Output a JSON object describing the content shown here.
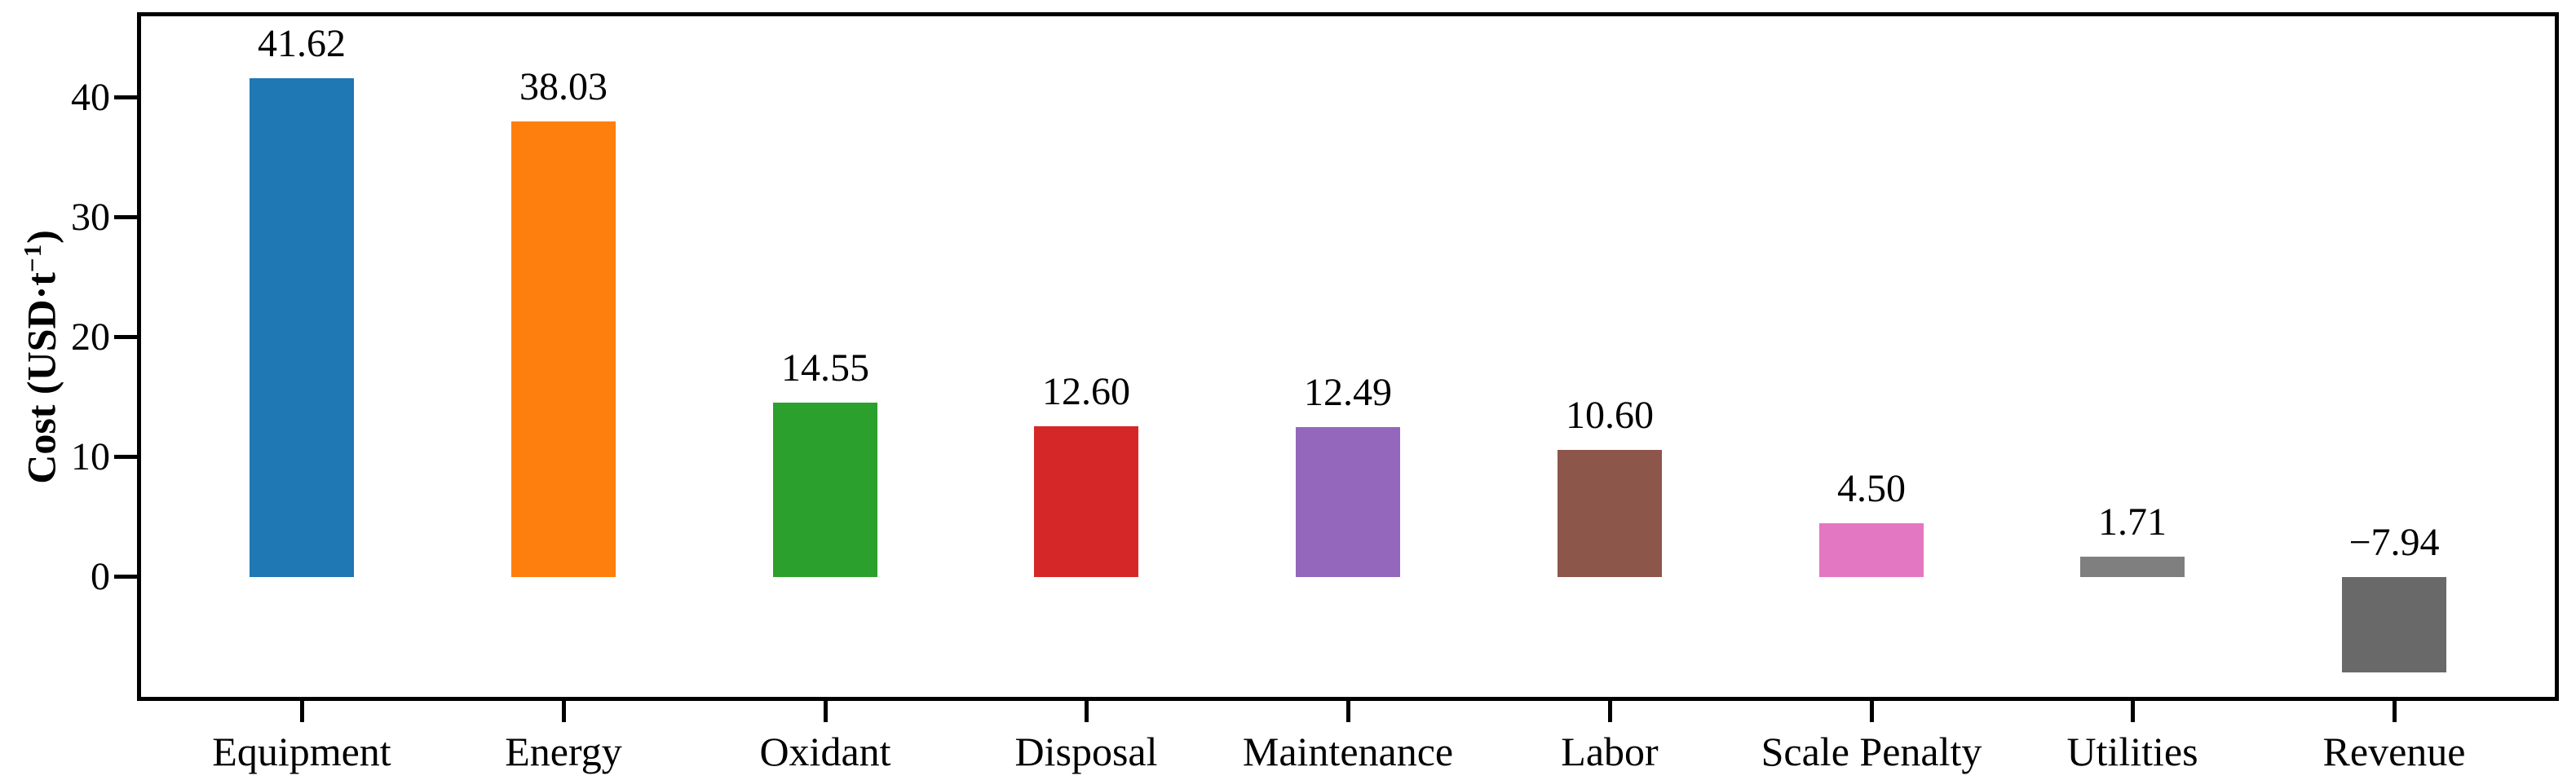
{
  "figure": {
    "background": "#ffffff",
    "spine_color": "#000000",
    "text_color": "#000000"
  },
  "chart_data": {
    "type": "bar",
    "title": "",
    "xlabel": "",
    "ylabel": "Cost (USD·t⁻¹)",
    "ylabel_parts": {
      "prefix": "Cost (USD·t",
      "superscript": "−1",
      "suffix": ")"
    },
    "categories": [
      "Equipment",
      "Energy",
      "Oxidant",
      "Disposal",
      "Maintenance",
      "Labor",
      "Scale Penalty",
      "Utilities",
      "Revenue"
    ],
    "values": [
      41.62,
      38.03,
      14.55,
      12.6,
      12.49,
      10.6,
      4.5,
      1.71,
      -7.94
    ],
    "value_labels": [
      "41.62",
      "38.03",
      "14.55",
      "12.60",
      "12.49",
      "10.60",
      "4.50",
      "1.71",
      "−7.94"
    ],
    "bar_colors": [
      "#1f77b4",
      "#ff7f0e",
      "#2ca02c",
      "#d62728",
      "#9467bd",
      "#8c564b",
      "#e377c2",
      "#7f7f7f",
      "#696969"
    ],
    "y_ticks": [
      0,
      10,
      20,
      30,
      40
    ],
    "ylim": [
      -10,
      46.8
    ],
    "bar_width_fraction": 0.4,
    "grid": "off",
    "legend": "none"
  }
}
